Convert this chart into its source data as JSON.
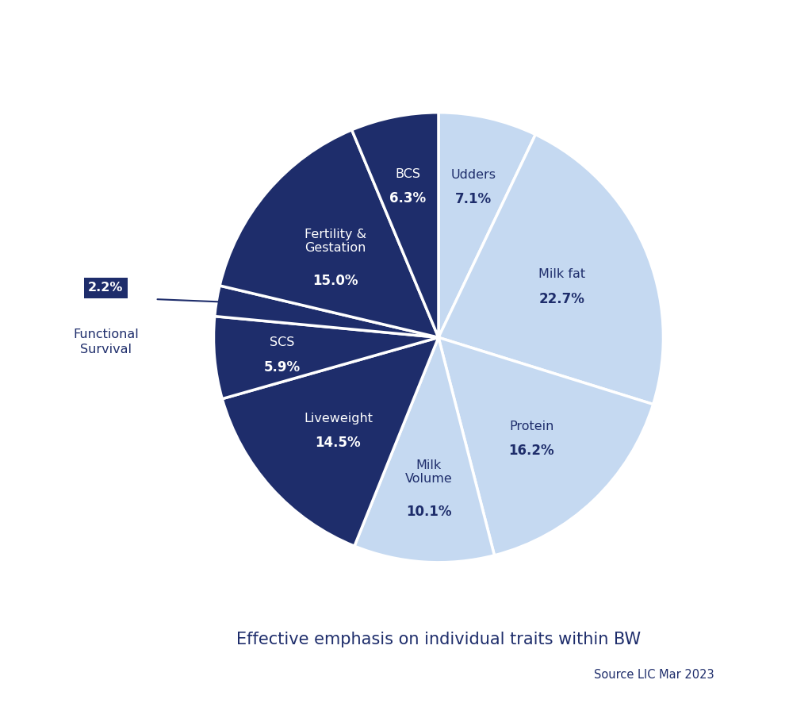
{
  "slices": [
    {
      "label": "Udders",
      "pct": 7.1,
      "color": "#c5d9f1",
      "text_color": "#1e2d6b"
    },
    {
      "label": "Milk fat",
      "pct": 22.7,
      "color": "#c5d9f1",
      "text_color": "#1e2d6b"
    },
    {
      "label": "Protein",
      "pct": 16.2,
      "color": "#c5d9f1",
      "text_color": "#1e2d6b"
    },
    {
      "label": "Milk\nVolume",
      "pct": 10.1,
      "color": "#c5d9f1",
      "text_color": "#1e2d6b"
    },
    {
      "label": "Liveweight",
      "pct": 14.5,
      "color": "#1e2d6b",
      "text_color": "#ffffff"
    },
    {
      "label": "SCS",
      "pct": 5.9,
      "color": "#1e2d6b",
      "text_color": "#ffffff"
    },
    {
      "label": "Functional\nSurvival",
      "pct": 2.2,
      "color": "#1e2d6b",
      "text_color": "#ffffff"
    },
    {
      "label": "Fertility &\nGestation",
      "pct": 15.0,
      "color": "#1e2d6b",
      "text_color": "#ffffff"
    },
    {
      "label": "BCS",
      "pct": 6.3,
      "color": "#1e2d6b",
      "text_color": "#ffffff"
    }
  ],
  "title": "Effective emphasis on individual traits within BW",
  "source": "Source LIC Mar 2023",
  "title_color": "#1e2d6b",
  "source_color": "#1e2d6b",
  "bg_color": "#ffffff",
  "outline_color": "#ffffff",
  "fs_box_color": "#1e2d6b",
  "fs_box_text_color": "#ffffff",
  "fs_line_color": "#1e2d6b"
}
